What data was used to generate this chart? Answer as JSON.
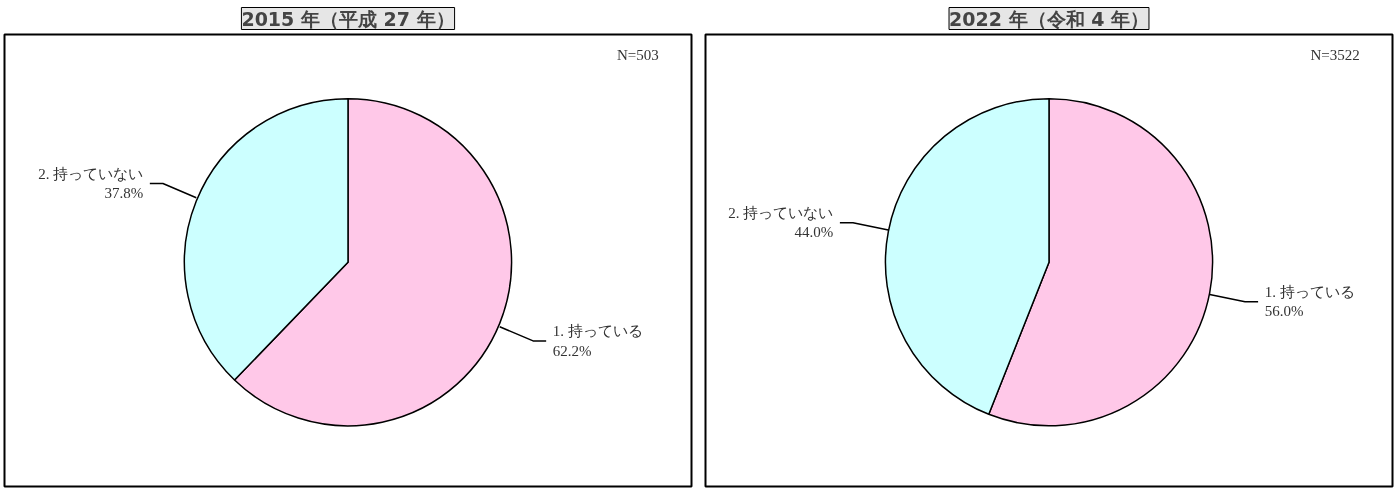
{
  "chart_data": [
    {
      "type": "pie",
      "title": "2015 年（平成 27 年）",
      "categories": [
        "1. 持っている",
        "2. 持っていない"
      ],
      "values": [
        62.2,
        37.8
      ],
      "value_labels": [
        "62.2%",
        "37.8%"
      ],
      "colors": [
        "#ffc8e8",
        "#ccffff"
      ],
      "annotations": [
        "N=503"
      ]
    },
    {
      "type": "pie",
      "title": "2022 年（令和 4 年）",
      "categories": [
        "1. 持っている",
        "2. 持っていない"
      ],
      "values": [
        56.0,
        44.0
      ],
      "value_labels": [
        "56.0%",
        "44.0%"
      ],
      "colors": [
        "#ffc8e8",
        "#ccffff"
      ],
      "annotations": [
        "N=3522"
      ]
    }
  ]
}
